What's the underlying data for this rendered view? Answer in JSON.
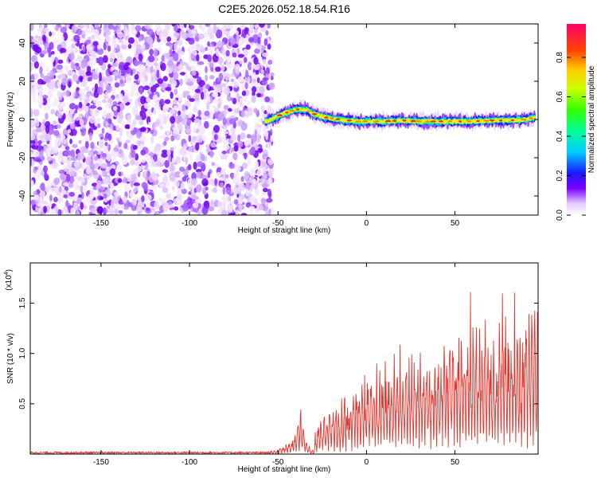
{
  "title": "C2E5.2026.052.18.54.R16",
  "chart_data": [
    {
      "type": "heatmap",
      "xlabel": "Height of straight line (km)",
      "ylabel": "Frequency (Hz)",
      "xlim": [
        -190,
        97
      ],
      "ylim": [
        -50,
        50
      ],
      "xticks": [
        -150,
        -100,
        -50,
        0,
        50
      ],
      "yticks": [
        -40,
        -20,
        0,
        20,
        40
      ],
      "noise_region_x": [
        -190,
        -55
      ],
      "signal_trace": {
        "x": [
          -57,
          -52,
          -47,
          -42,
          -38,
          -34,
          -30,
          -25,
          -20,
          -15,
          -10,
          -5,
          0,
          10,
          20,
          30,
          40,
          50,
          60,
          70,
          80,
          90,
          95
        ],
        "y": [
          -1,
          1,
          3,
          4.5,
          5.5,
          5,
          3,
          1.5,
          0.5,
          0,
          -0.5,
          -1,
          -1,
          -1,
          -0.5,
          -1,
          -1,
          -1,
          -1,
          -0.5,
          -0.5,
          0,
          1
        ]
      },
      "colorbar": {
        "label": "Normalized spectral amplitude",
        "ticks": [
          "0.0",
          "0.2",
          "0.4",
          "0.6",
          "0.8"
        ],
        "range": [
          0,
          0.97
        ]
      }
    },
    {
      "type": "line",
      "xlabel": "Height of straight line (km)",
      "ylabel": "SNR (10 * v/v)",
      "scale_label": "(x10",
      "scale_exp": "4",
      "xlim": [
        -190,
        97
      ],
      "ylim": [
        0,
        1.9
      ],
      "xticks": [
        -150,
        -100,
        -50,
        0,
        50
      ],
      "yticks": [
        "0.5",
        "1.0",
        "1.5"
      ],
      "color": "#e8332b",
      "envelope": {
        "x": [
          -190,
          -60,
          -50,
          -44,
          -39,
          -37,
          -35,
          -33,
          -30,
          -28,
          -25,
          -20,
          -15,
          -10,
          -5,
          0,
          5,
          10,
          20,
          30,
          40,
          50,
          60,
          70,
          80,
          90,
          96
        ],
        "y": [
          0.01,
          0.01,
          0.05,
          0.12,
          0.3,
          0.48,
          0.22,
          0.12,
          0.02,
          0.28,
          0.48,
          0.5,
          0.55,
          0.65,
          0.78,
          0.85,
          0.92,
          0.98,
          1.05,
          1.15,
          1.25,
          1.35,
          1.4,
          1.45,
          1.5,
          1.55,
          1.55
        ]
      }
    }
  ]
}
